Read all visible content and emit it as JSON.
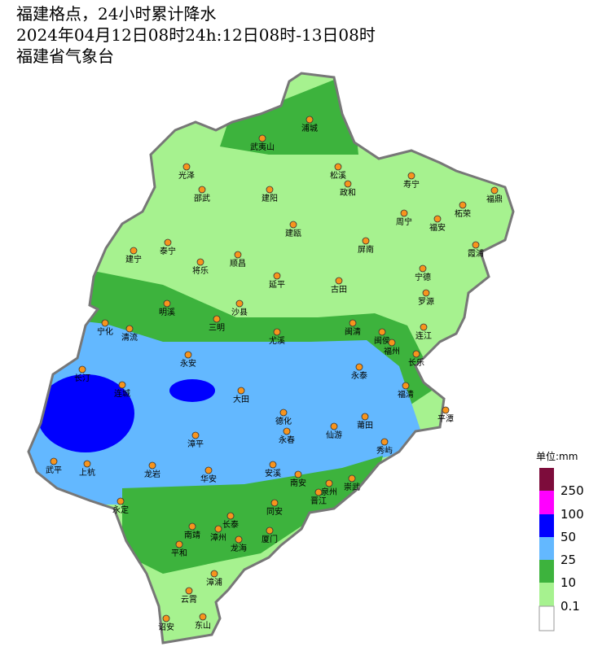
{
  "header": {
    "title": "福建格点，24小时累计降水",
    "time": "2024年04月12日08时24h:12日08时-13日08时",
    "source": "福建省气象台"
  },
  "legend": {
    "unit": "单位:mm",
    "levels": [
      "250",
      "100",
      "50",
      "25",
      "10",
      "0.1"
    ]
  },
  "cities": [
    "武夷山",
    "浦城",
    "光泽",
    "松溪",
    "政和",
    "寿宁",
    "福鼎",
    "邵武",
    "建阳",
    "柘荣",
    "周宁",
    "福安",
    "建瓯",
    "泰宁",
    "屏南",
    "霞浦",
    "建宁",
    "顺昌",
    "将乐",
    "宁德",
    "延平",
    "古田",
    "罗源",
    "明溪",
    "沙县",
    "三明",
    "闽清",
    "宁化",
    "清流",
    "尤溪",
    "闽侯",
    "连江",
    "福州",
    "永安",
    "长乐",
    "长汀",
    "永泰",
    "连城",
    "大田",
    "福清",
    "平潭",
    "德化",
    "莆田",
    "永春",
    "仙游",
    "秀屿",
    "漳平",
    "武平",
    "上杭",
    "龙岩",
    "华安",
    "安溪",
    "南安",
    "泉州",
    "崇武",
    "晋江",
    "永定",
    "同安",
    "长泰",
    "南靖",
    "漳州",
    "厦门",
    "龙海",
    "平和",
    "漳浦",
    "云霄",
    "东山",
    "诏安"
  ]
}
